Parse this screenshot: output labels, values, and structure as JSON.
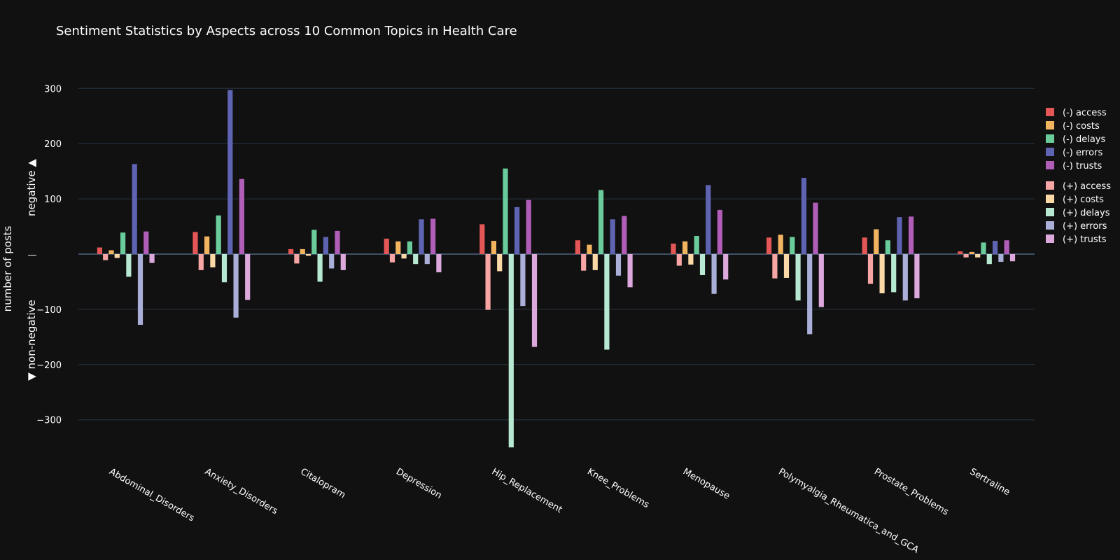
{
  "chart_data": {
    "type": "bar",
    "title": "Sentiment Statistics by Aspects across 10 Common Topics in Health Care",
    "ylabel": {
      "main": "number of posts",
      "up": "negative ▲",
      "down": "▼ non-negative",
      "zero_label": "—"
    },
    "ylim": [
      -360,
      320
    ],
    "yticks": [
      300,
      200,
      100,
      -100,
      -200,
      -300
    ],
    "grid": true,
    "legend_placement": "right",
    "categories": [
      "Abdominal_Disorders",
      "Anxiety_Disorders",
      "Citalopram",
      "Depression",
      "Hip_Replacement",
      "Knee_Problems",
      "Menopause",
      "Polymyalgia_Rheumatica_and_GCA",
      "Prostate_Problems",
      "Sertraline"
    ],
    "series": [
      {
        "name": "(-) access",
        "color": "#E45756",
        "values": [
          12,
          40,
          9,
          28,
          54,
          25,
          19,
          30,
          30,
          5
        ],
        "pos": 0
      },
      {
        "name": "(+) access",
        "color": "#F8A5A5",
        "values": [
          -11,
          -29,
          -17,
          -15,
          -101,
          -30,
          -21,
          -44,
          -54,
          -6
        ],
        "pos": 1
      },
      {
        "name": "(-) costs",
        "color": "#F2B55F",
        "values": [
          7,
          32,
          9,
          23,
          24,
          17,
          23,
          35,
          45,
          4
        ],
        "pos": 2
      },
      {
        "name": "(+) costs",
        "color": "#FBD9A6",
        "values": [
          -7,
          -24,
          -3,
          -8,
          -31,
          -29,
          -19,
          -43,
          -71,
          -6
        ],
        "pos": 3
      },
      {
        "name": "(-) delays",
        "color": "#6ACB9B",
        "values": [
          39,
          70,
          44,
          23,
          155,
          116,
          33,
          31,
          25,
          21
        ],
        "pos": 4
      },
      {
        "name": "(+) delays",
        "color": "#B6E8D2",
        "values": [
          -41,
          -51,
          -50,
          -18,
          -350,
          -173,
          -38,
          -84,
          -69,
          -18
        ],
        "pos": 5
      },
      {
        "name": "(-) errors",
        "color": "#5F64B2",
        "values": [
          163,
          297,
          31,
          63,
          85,
          63,
          125,
          138,
          67,
          24
        ],
        "pos": 6
      },
      {
        "name": "(+) errors",
        "color": "#A9AFD8",
        "values": [
          -128,
          -115,
          -26,
          -18,
          -94,
          -39,
          -72,
          -145,
          -84,
          -14
        ],
        "pos": 7
      },
      {
        "name": "(-) trusts",
        "color": "#B15EB8",
        "values": [
          41,
          136,
          42,
          64,
          98,
          69,
          80,
          93,
          68,
          25
        ],
        "pos": 8
      },
      {
        "name": "(+) trusts",
        "color": "#DDA9DD",
        "values": [
          -16,
          -83,
          -29,
          -33,
          -168,
          -60,
          -46,
          -96,
          -80,
          -13
        ],
        "pos": 9
      }
    ]
  }
}
